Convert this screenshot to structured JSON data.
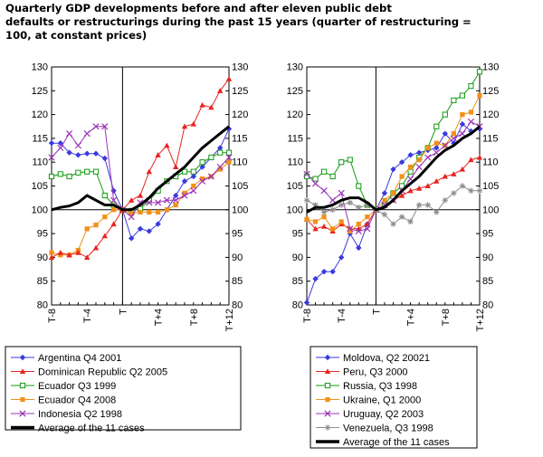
{
  "title_lines": [
    "Quarterly GDP developments before and after eleven public debt",
    "defaults or restructurings during the past 15 years (quarter of restructuring =",
    "100, at constant prices)"
  ],
  "chart_data": [
    {
      "type": "line",
      "x": [
        -8,
        -7,
        -6,
        -5,
        -4,
        -3,
        -2,
        -1,
        0,
        1,
        2,
        3,
        4,
        5,
        6,
        7,
        8,
        9,
        10,
        11,
        12
      ],
      "ylim": [
        80,
        130
      ],
      "yticks": [
        80,
        85,
        90,
        95,
        100,
        105,
        110,
        115,
        120,
        125,
        130
      ],
      "xtick_labels": [
        "T-8",
        "T-4",
        "T",
        "T+4",
        "T+8",
        "T+12"
      ],
      "xtick_values": [
        -8,
        -4,
        0,
        4,
        8,
        12
      ],
      "reference_line": 100,
      "legend_placement": "bottom",
      "series": [
        {
          "name": "Argentina Q4 2001",
          "color": "#3a3adf",
          "marker": "diamond",
          "values": [
            114,
            114,
            112,
            111.5,
            111.8,
            111.8,
            110.8,
            104,
            100,
            94,
            96,
            95.5,
            97,
            100,
            103,
            106,
            107,
            109,
            111,
            113,
            117
          ]
        },
        {
          "name": "Dominican Republic Q2 2005",
          "color": "#e8231f",
          "marker": "triangle",
          "values": [
            null,
            null,
            null,
            null,
            null,
            null,
            null,
            null,
            100,
            102,
            103,
            108,
            111.5,
            113.5,
            109,
            117.5,
            118,
            122,
            121.5,
            125,
            127.5
          ]
        },
        {
          "name": "Ecuador Q3 1999",
          "color": "#119a11",
          "marker": "square-open",
          "values": [
            107,
            107.5,
            107,
            107.8,
            108,
            108,
            103,
            101,
            100,
            99.8,
            100.2,
            102,
            104,
            106,
            107,
            108,
            108,
            110,
            111,
            112,
            112
          ]
        },
        {
          "name": "Ecuador Q4 2008",
          "color": "#f29018",
          "marker": "square",
          "values": [
            91,
            90.5,
            90.5,
            91.5,
            96,
            96.8,
            98.5,
            100,
            100,
            99.2,
            99.5,
            99.5,
            99.5,
            100,
            101,
            103.5,
            105,
            106.5,
            107,
            108.5,
            110
          ]
        },
        {
          "name": "Indonesia Q2 1998",
          "color": "#9b35b5",
          "marker": "cross",
          "values": [
            111,
            113,
            116,
            113.5,
            116,
            117.5,
            117.5,
            102,
            100,
            98.5,
            101.5,
            101.5,
            101.5,
            102,
            102,
            103,
            104,
            106,
            107,
            109,
            111
          ]
        },
        {
          "name": "Dominican Republic Q2 2005 (left series)",
          "color": "#e8231f",
          "marker": "triangle",
          "values": [
            90,
            91,
            90.5,
            91,
            90,
            92,
            94.5,
            97,
            100,
            null,
            null,
            null,
            null,
            null,
            null,
            null,
            null,
            null,
            null,
            null,
            null
          ]
        },
        {
          "name": "Average of the 11 cases",
          "color": "#000000",
          "marker": "none",
          "thick": true,
          "values": [
            100,
            100.5,
            100.8,
            101.5,
            103,
            102,
            101,
            101,
            100,
            100,
            101,
            102.5,
            104.5,
            106,
            107.5,
            109,
            111,
            113,
            114.5,
            116,
            117.5
          ]
        }
      ]
    },
    {
      "type": "line",
      "x": [
        -8,
        -7,
        -6,
        -5,
        -4,
        -3,
        -2,
        -1,
        0,
        1,
        2,
        3,
        4,
        5,
        6,
        7,
        8,
        9,
        10,
        11,
        12
      ],
      "ylim": [
        80,
        130
      ],
      "yticks": [
        80,
        85,
        90,
        95,
        100,
        105,
        110,
        115,
        120,
        125,
        130
      ],
      "xtick_labels": [
        "T-8",
        "T-4",
        "T",
        "T+4",
        "T+8",
        "T+12"
      ],
      "xtick_values": [
        -8,
        -4,
        0,
        4,
        8,
        12
      ],
      "reference_line": 100,
      "legend_placement": "bottom",
      "series": [
        {
          "name": "Moldova, Q2 20021",
          "color": "#3a3adf",
          "marker": "diamond",
          "values": [
            80.5,
            85.5,
            87,
            87,
            90,
            95,
            92,
            97,
            100,
            103.5,
            108.5,
            110,
            111.5,
            112,
            112.5,
            113,
            116,
            114,
            118,
            116.5,
            117
          ]
        },
        {
          "name": "Peru, Q3 2000",
          "color": "#e8231f",
          "marker": "triangle",
          "values": [
            98,
            96,
            96.5,
            95.5,
            97,
            96,
            96,
            97,
            100,
            101,
            102,
            103,
            104,
            104.5,
            105,
            106,
            107,
            107.5,
            108.5,
            110.5,
            111
          ]
        },
        {
          "name": "Russia, Q3 1998",
          "color": "#119a11",
          "marker": "square-open",
          "values": [
            107,
            106.5,
            108,
            107,
            110,
            110.5,
            105,
            101,
            100,
            101,
            103.5,
            105,
            108,
            111,
            113,
            117.5,
            120,
            123,
            124,
            126,
            129
          ]
        },
        {
          "name": "Ukraine, Q1 2000",
          "color": "#f29018",
          "marker": "square",
          "values": [
            98,
            97.5,
            98.5,
            96,
            97.5,
            95.5,
            97,
            98.5,
            100,
            102,
            103.5,
            107,
            109,
            110.5,
            113,
            114,
            113.5,
            116,
            120,
            120.5,
            124
          ]
        },
        {
          "name": "Uruguay, Q2 2003",
          "color": "#9b35b5",
          "marker": "cross",
          "values": [
            107.5,
            105.5,
            104,
            102,
            103.5,
            96,
            95.5,
            96,
            100,
            101,
            102,
            104,
            106.5,
            109,
            111,
            112,
            113.5,
            115,
            116,
            118.5,
            117.5
          ]
        },
        {
          "name": "Venezuela, Q3 1998",
          "color": "#8c8c8c",
          "marker": "star",
          "values": [
            102,
            101,
            99.5,
            100,
            101,
            101.5,
            100.5,
            101,
            100,
            99,
            97,
            98.5,
            97.5,
            101,
            101,
            99.5,
            102,
            103.5,
            105,
            104,
            104
          ]
        },
        {
          "name": "Average of the 11 cases",
          "color": "#000000",
          "marker": "none",
          "thick": true,
          "values": [
            99.5,
            100.5,
            100.5,
            101,
            102,
            102.5,
            102.5,
            101.5,
            100,
            100.5,
            102,
            104,
            105.5,
            107,
            109,
            111,
            112.5,
            113.5,
            115,
            116,
            117.5
          ]
        }
      ]
    }
  ]
}
